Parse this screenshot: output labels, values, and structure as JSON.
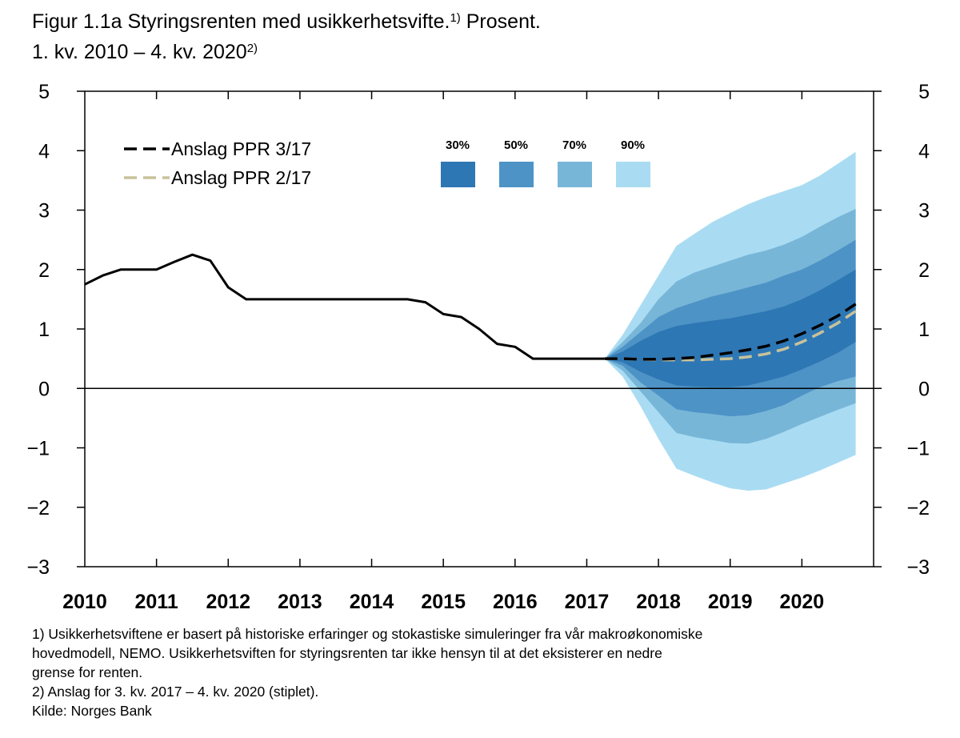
{
  "title": {
    "line1_text": "Figur 1.1a Styringsrenten med usikkerhetsvifte.",
    "line1_sup": "1)",
    "line1_suffix": " Prosent.",
    "line2_text": "1. kv. 2010 – 4. kv. 2020",
    "line2_sup": "2)"
  },
  "chart_data": {
    "type": "line",
    "x_start_year": 2010,
    "x_end_year": 2020.75,
    "ylim": [
      -3,
      5
    ],
    "y_ticks": [
      5,
      4,
      3,
      2,
      1,
      0,
      -1,
      -2,
      -3
    ],
    "y_tick_labels": [
      "5",
      "4",
      "3",
      "2",
      "1",
      "0",
      "−1",
      "−2",
      "−3"
    ],
    "x_tick_labels": [
      "2010",
      "2011",
      "2012",
      "2013",
      "2014",
      "2015",
      "2016",
      "2017",
      "2018",
      "2019",
      "2020"
    ],
    "historical": {
      "x": [
        2010.0,
        2010.25,
        2010.5,
        2010.75,
        2011.0,
        2011.25,
        2011.5,
        2011.75,
        2012.0,
        2012.25,
        2012.5,
        2012.75,
        2013.0,
        2013.25,
        2013.5,
        2013.75,
        2014.0,
        2014.25,
        2014.5,
        2014.75,
        2015.0,
        2015.25,
        2015.5,
        2015.75,
        2016.0,
        2016.25,
        2016.5,
        2016.75,
        2017.0,
        2017.25
      ],
      "y": [
        1.75,
        1.9,
        2.0,
        2.0,
        2.0,
        2.13,
        2.25,
        2.15,
        1.7,
        1.5,
        1.5,
        1.5,
        1.5,
        1.5,
        1.5,
        1.5,
        1.5,
        1.5,
        1.5,
        1.45,
        1.25,
        1.2,
        1.0,
        0.75,
        0.7,
        0.5,
        0.5,
        0.5,
        0.5,
        0.5
      ]
    },
    "series": [
      {
        "name": "Anslag PPR 3/17",
        "x": [
          2017.25,
          2017.5,
          2017.75,
          2018.0,
          2018.25,
          2018.5,
          2018.75,
          2019.0,
          2019.25,
          2019.5,
          2019.75,
          2020.0,
          2020.25,
          2020.5,
          2020.75
        ],
        "y": [
          0.5,
          0.5,
          0.49,
          0.49,
          0.5,
          0.52,
          0.56,
          0.6,
          0.65,
          0.71,
          0.8,
          0.92,
          1.06,
          1.22,
          1.42
        ]
      },
      {
        "name": "Anslag PPR 2/17",
        "x": [
          2017.25,
          2017.5,
          2017.75,
          2018.0,
          2018.25,
          2018.5,
          2018.75,
          2019.0,
          2019.25,
          2019.5,
          2019.75,
          2020.0,
          2020.25,
          2020.5,
          2020.75
        ],
        "y": [
          0.5,
          0.5,
          0.49,
          0.48,
          0.48,
          0.48,
          0.49,
          0.5,
          0.53,
          0.58,
          0.66,
          0.78,
          0.93,
          1.1,
          1.3
        ]
      }
    ],
    "fan": {
      "x": [
        2017.25,
        2017.5,
        2017.75,
        2018.0,
        2018.25,
        2018.5,
        2018.75,
        2019.0,
        2019.25,
        2019.5,
        2019.75,
        2020.0,
        2020.25,
        2020.5,
        2020.75
      ],
      "bands": [
        {
          "name": "90%",
          "color": "#a9dcf2",
          "upper": [
            0.5,
            0.9,
            1.4,
            1.9,
            2.4,
            2.6,
            2.8,
            2.95,
            3.1,
            3.22,
            3.32,
            3.42,
            3.58,
            3.78,
            3.98
          ],
          "lower": [
            0.5,
            0.2,
            -0.3,
            -0.85,
            -1.35,
            -1.47,
            -1.58,
            -1.68,
            -1.72,
            -1.7,
            -1.6,
            -1.5,
            -1.38,
            -1.25,
            -1.12
          ]
        },
        {
          "name": "70%",
          "color": "#78b6d8",
          "upper": [
            0.5,
            0.78,
            1.1,
            1.5,
            1.8,
            1.95,
            2.05,
            2.15,
            2.25,
            2.32,
            2.42,
            2.55,
            2.72,
            2.88,
            3.02
          ],
          "lower": [
            0.5,
            0.3,
            -0.05,
            -0.4,
            -0.75,
            -0.82,
            -0.87,
            -0.92,
            -0.93,
            -0.85,
            -0.73,
            -0.6,
            -0.48,
            -0.36,
            -0.25
          ]
        },
        {
          "name": "50%",
          "color": "#4d93c6",
          "upper": [
            0.5,
            0.7,
            0.95,
            1.2,
            1.35,
            1.45,
            1.55,
            1.62,
            1.7,
            1.78,
            1.9,
            2.0,
            2.15,
            2.32,
            2.5
          ],
          "lower": [
            0.5,
            0.38,
            0.1,
            -0.12,
            -0.35,
            -0.4,
            -0.43,
            -0.47,
            -0.45,
            -0.38,
            -0.28,
            -0.12,
            0.02,
            0.12,
            0.2
          ]
        },
        {
          "name": "30%",
          "color": "#2e77b5",
          "upper": [
            0.5,
            0.62,
            0.8,
            0.95,
            1.05,
            1.1,
            1.14,
            1.18,
            1.24,
            1.3,
            1.38,
            1.5,
            1.65,
            1.82,
            2.0
          ],
          "lower": [
            0.5,
            0.44,
            0.28,
            0.15,
            0.05,
            0.03,
            0.02,
            0.02,
            0.05,
            0.12,
            0.2,
            0.32,
            0.45,
            0.6,
            0.78
          ]
        }
      ]
    },
    "legend": {
      "lines": [
        {
          "label": "Anslag PPR 3/17",
          "color": "#000000"
        },
        {
          "label": "Anslag PPR 2/17",
          "color": "#c8c29b"
        }
      ],
      "fan_labels": [
        "30%",
        "50%",
        "70%",
        "90%"
      ],
      "fan_colors": [
        "#2e77b5",
        "#4d93c6",
        "#78b6d8",
        "#a9dcf2"
      ],
      "position": "top-left"
    },
    "grid": false
  },
  "footnotes": [
    "1) Usikkerhetsviftene er basert på historiske erfaringer og stokastiske simuleringer fra vår makroøkonomiske",
    "hovedmodell, NEMO. Usikkerhetsviften for styringsrenten tar ikke hensyn til at det eksisterer en nedre",
    "grense for renten.",
    "2) Anslag for 3. kv. 2017 – 4. kv. 2020 (stiplet).",
    "Kilde: Norges Bank"
  ]
}
